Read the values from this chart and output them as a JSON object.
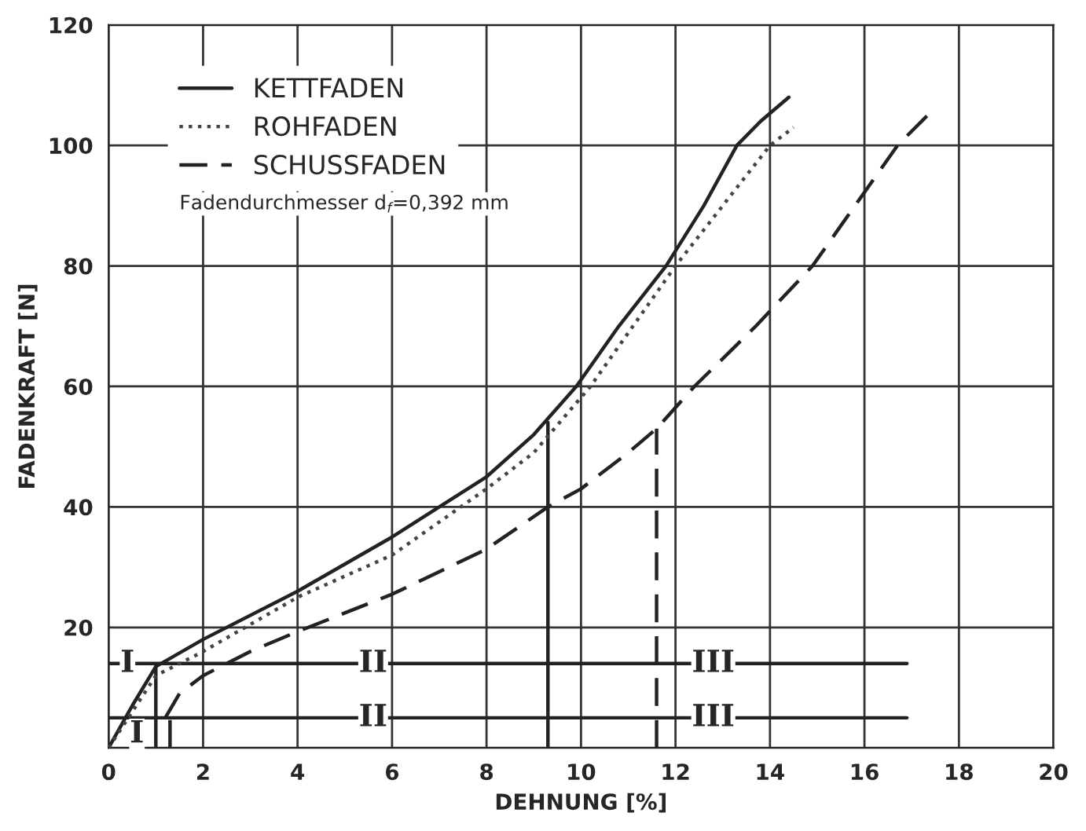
{
  "chart_data": {
    "type": "line",
    "xlabel": "DEHNUNG [%]",
    "ylabel": "FADENKRAFT [N]",
    "xlim": [
      0,
      20
    ],
    "xticks": [
      0,
      2,
      4,
      6,
      8,
      10,
      12,
      14,
      16,
      18,
      20
    ],
    "ylim": [
      0,
      120
    ],
    "yticks": [
      {
        "value": 0,
        "label": null
      },
      20,
      40,
      60,
      80,
      100,
      120
    ],
    "grid": true,
    "legend": "top left",
    "series": [
      {
        "name": "KETTFADEN",
        "color": "#222222",
        "line_style": "solid",
        "x": [
          0,
          0.5,
          1,
          2,
          4,
          6,
          7,
          8,
          9,
          9.9,
          10.8,
          11.8,
          12.6,
          13.3,
          13.8,
          14.4
        ],
        "values": [
          0,
          7,
          13.5,
          18,
          26,
          35,
          40,
          45,
          52,
          60,
          70,
          80,
          90,
          100,
          104,
          108
        ]
      },
      {
        "name": "ROHFADEN",
        "color": "#444444",
        "line_style": "dotted",
        "x": [
          0,
          0.5,
          1,
          2,
          4,
          6,
          8,
          9,
          10.2,
          11.1,
          12.0,
          13.0,
          14.0,
          14.5
        ],
        "values": [
          0,
          6,
          12,
          16,
          25,
          32,
          43,
          49,
          60,
          70,
          80,
          90,
          100,
          103
        ]
      },
      {
        "name": "SCHUSSFADEN",
        "color": "#222222",
        "line_style": "dashed",
        "x": [
          1.2,
          1.5,
          2,
          3,
          4,
          6,
          8,
          9.3,
          10,
          11,
          11.6,
          12.4,
          13.7,
          14.9,
          15.8,
          16.7,
          17.4
        ],
        "values": [
          5,
          9,
          12,
          16,
          19.3,
          25.5,
          33,
          40,
          43,
          49,
          53,
          60,
          70,
          80,
          90,
          100,
          105.5
        ]
      },
      {
        "color": "#222222",
        "line_style": "solid",
        "x": [
          0,
          16.9
        ],
        "values": [
          14,
          14
        ]
      },
      {
        "color": "#222222",
        "line_style": "solid",
        "x": [
          0,
          16.9
        ],
        "values": [
          5,
          5
        ]
      },
      {
        "color": "#222222",
        "line_style": "solid",
        "x": [
          9.3,
          9.3
        ],
        "values": [
          0,
          54
        ]
      },
      {
        "color": "#222222",
        "line_style": "dashed",
        "x": [
          11.6,
          11.6
        ],
        "values": [
          0,
          53
        ]
      },
      {
        "color": "#222222",
        "line_style": "solid",
        "x": [
          1,
          1
        ],
        "values": [
          0,
          13.5
        ]
      },
      {
        "color": "#222222",
        "line_style": "dashed",
        "x": [
          1.3,
          1.3
        ],
        "values": [
          0,
          5
        ]
      }
    ],
    "annotations": [
      "Fadendurchmesser d$_{f}$=0,392 mm",
      {
        "text": "I",
        "x": 0.4,
        "y": 14
      },
      {
        "text": "II",
        "x": 5.6,
        "y": 14
      },
      {
        "text": "III",
        "x": 12.8,
        "y": 14
      },
      {
        "text": "I",
        "x": 0.6,
        "y": 2.3
      },
      {
        "text": "II",
        "x": 5.6,
        "y": 5
      },
      {
        "text": "III",
        "x": 12.8,
        "y": 5
      }
    ]
  }
}
